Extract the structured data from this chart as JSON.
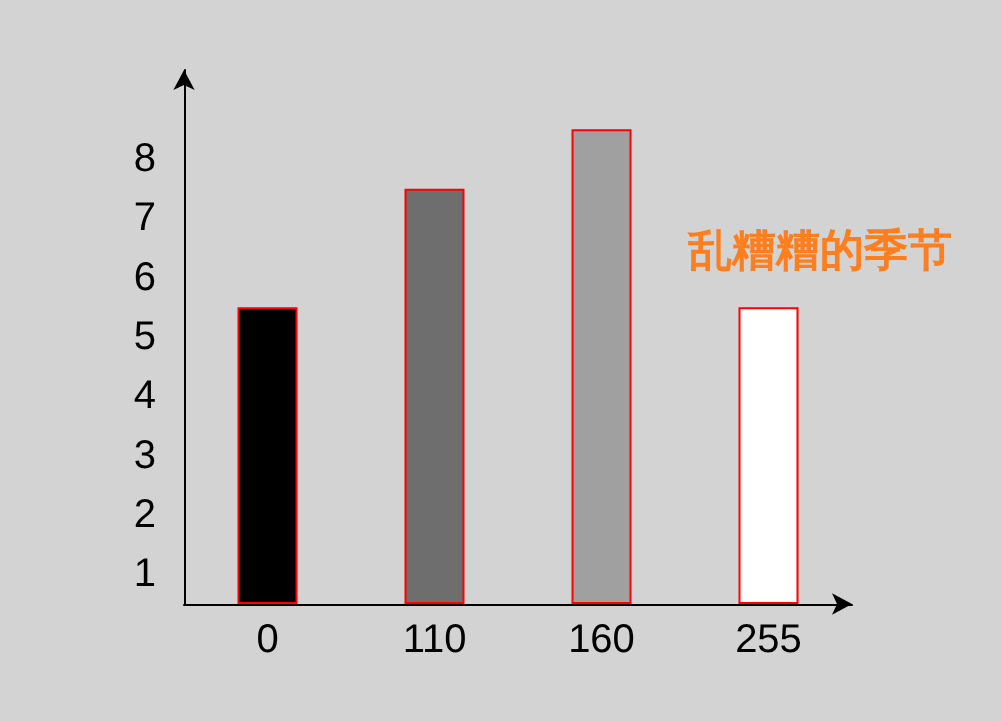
{
  "chart_data": {
    "type": "bar",
    "title": "乱糟糟的季节",
    "categories": [
      "0",
      "110",
      "160",
      "255"
    ],
    "values": [
      5,
      7,
      8,
      5
    ],
    "colors": [
      "#000000",
      "#6e6e6e",
      "#a0a0a0",
      "#ffffff"
    ],
    "ylim": [
      0,
      9
    ],
    "yticks": [
      {
        "value": 0.5,
        "label": "1"
      },
      {
        "value": 1.5,
        "label": "2"
      },
      {
        "value": 2.5,
        "label": "3"
      },
      {
        "value": 3.5,
        "label": "4"
      },
      {
        "value": 4.5,
        "label": "5"
      },
      {
        "value": 5.5,
        "label": "6"
      },
      {
        "value": 6.5,
        "label": "7"
      },
      {
        "value": 7.5,
        "label": "8"
      }
    ],
    "grid": false
  }
}
